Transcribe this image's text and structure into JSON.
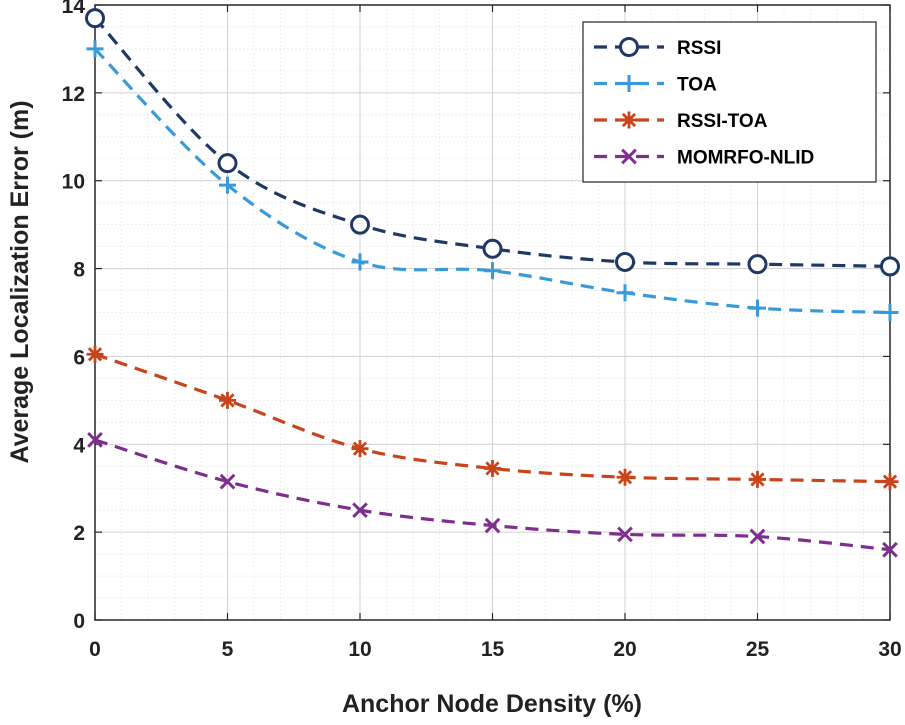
{
  "chart_data": {
    "type": "line",
    "title": "",
    "xlabel": "Anchor Node Density (%)",
    "ylabel": "Average Localization Error (m)",
    "xlim": [
      0,
      30
    ],
    "ylim": [
      0,
      14
    ],
    "xticks": [
      "0",
      "5",
      "10",
      "15",
      "20",
      "25",
      "30"
    ],
    "yticks": [
      "0",
      "2",
      "4",
      "6",
      "8",
      "10",
      "12",
      "14"
    ],
    "grid": true,
    "minor_grid": true,
    "legend_position": "top-right",
    "x": [
      0,
      5,
      10,
      15,
      20,
      25,
      30
    ],
    "series": [
      {
        "name": "RSSI",
        "values": [
          13.7,
          10.4,
          9.0,
          8.45,
          8.15,
          8.1,
          8.05
        ],
        "color": "#1f3864",
        "marker": "circle"
      },
      {
        "name": "TOA",
        "values": [
          13.0,
          9.9,
          8.15,
          7.95,
          7.45,
          7.1,
          7.0
        ],
        "color": "#3a9ad9",
        "marker": "plus"
      },
      {
        "name": "RSSI-TOA",
        "values": [
          6.05,
          5.0,
          3.9,
          3.45,
          3.25,
          3.2,
          3.15
        ],
        "color": "#c8441b",
        "marker": "asterisk"
      },
      {
        "name": "MOMRFO-NLID",
        "values": [
          4.1,
          3.15,
          2.5,
          2.15,
          1.95,
          1.9,
          1.6
        ],
        "color": "#7e2f8e",
        "marker": "cross"
      }
    ]
  }
}
